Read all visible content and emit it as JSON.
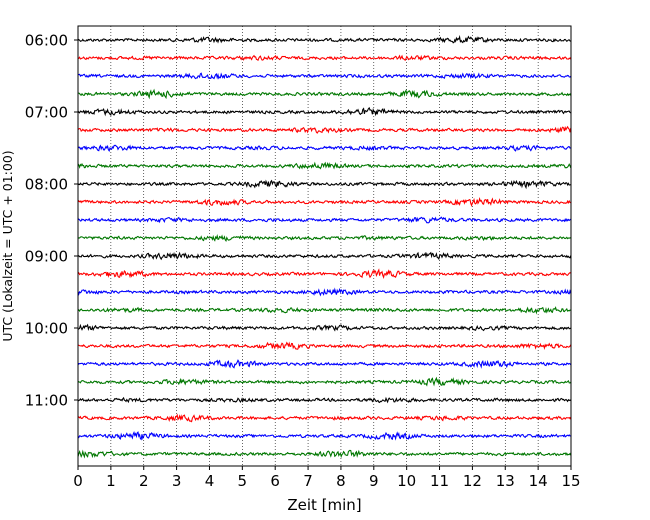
{
  "chart_data": {
    "type": "line",
    "title": "",
    "xlabel": "Zeit  [min]",
    "ylabel": "UTC (Lokalzeit = UTC + 01:00)",
    "xlim": [
      0,
      15
    ],
    "x_ticks": [
      0,
      1,
      2,
      3,
      4,
      5,
      6,
      7,
      8,
      9,
      10,
      11,
      12,
      13,
      14,
      15
    ],
    "y_tick_labels": [
      "06:00",
      "07:00",
      "08:00",
      "09:00",
      "10:00",
      "11:00"
    ],
    "trace_interval_min": 15,
    "trace_count": 24,
    "trace_start": "06:00",
    "trace_colors": [
      "#000000",
      "#ff0000",
      "#0000ff",
      "#007700"
    ],
    "grid": {
      "x": true,
      "y": false
    },
    "legend": "none"
  }
}
